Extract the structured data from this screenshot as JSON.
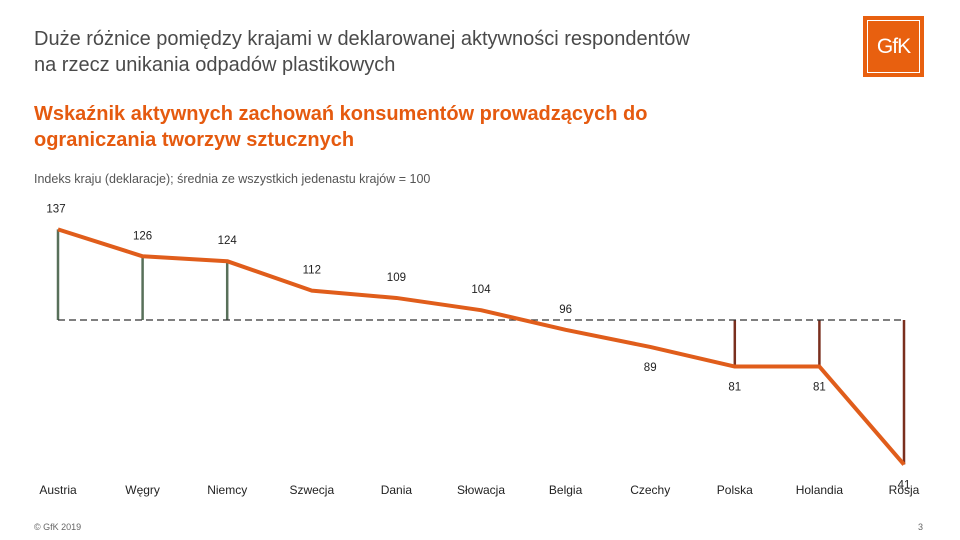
{
  "header": {
    "title": "Duże różnice pomiędzy krajami w deklarowanej aktywności respondentów na rzecz unikania odpadów plastikowych",
    "subtitle": "Wskaźnik aktywnych zachowań konsumentów prowadzących do ograniczania tworzyw sztucznych",
    "note": "Indeks kraju (deklaracje); średnia ze wszystkich jedenastu krajów = 100"
  },
  "logo": {
    "text": "GfK"
  },
  "footer": {
    "copyright": "© GfK 2019",
    "page_number": "3"
  },
  "colors": {
    "line": "#e05d1b",
    "above_average": "#58705a",
    "below_average": "#7a2f1e",
    "baseline": "#333333",
    "accent": "#e8600f"
  },
  "chart_data": {
    "type": "line",
    "title": "Wskaźnik aktywnych zachowań konsumentów prowadzących do ograniczania tworzyw sztucznych",
    "categories": [
      "Austria",
      "Węgry",
      "Niemcy",
      "Szwecja",
      "Dania",
      "Słowacja",
      "Belgia",
      "Czechy",
      "Polska",
      "Holandia",
      "Rosja"
    ],
    "values": [
      137,
      126,
      124,
      112,
      109,
      104,
      96,
      89,
      81,
      81,
      41
    ],
    "labels": [
      "137",
      "126",
      "124",
      "112",
      "109",
      "104",
      "96",
      "89",
      "81",
      "81",
      "41"
    ],
    "baseline": 100,
    "drop_lines": [
      "Austria",
      "Węgry",
      "Niemcy",
      "Polska",
      "Holandia",
      "Rosja"
    ],
    "xlabel": "",
    "ylabel": "",
    "grid": false
  }
}
